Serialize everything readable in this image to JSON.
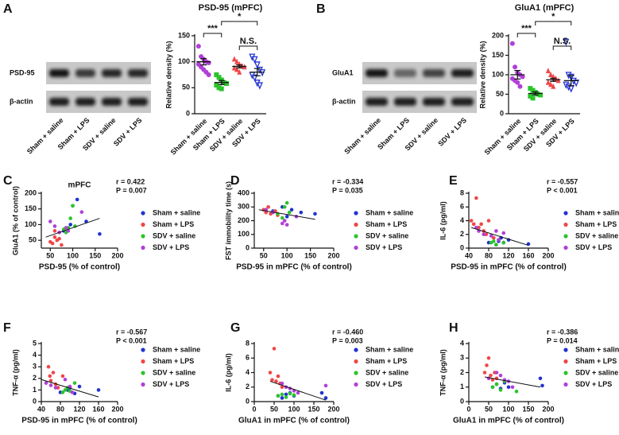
{
  "panels": [
    "A",
    "B",
    "C",
    "D",
    "E",
    "F",
    "G",
    "H"
  ],
  "blots": [
    {
      "label": "PSD-95",
      "control": "β-actin",
      "lanes": [
        "Sham + saline",
        "Sham + LPS",
        "SDV + saline",
        "SDV + LPS"
      ]
    },
    {
      "label": "GluA1",
      "control": "β-actin",
      "lanes": [
        "Sham + saline",
        "Sham + LPS",
        "SDV + saline",
        "SDV + LPS"
      ]
    }
  ],
  "chart_data": [
    {
      "type": "dot",
      "title": "PSD-95 (mPFC)",
      "y_label": "Relative density (%)",
      "categories": [
        "Sham + saline",
        "Sham + LPS",
        "SDV + saline",
        "SDV + LPS"
      ],
      "colors": [
        "#b13fd8",
        "#2bc42b",
        "#f04646",
        "#2233d0"
      ],
      "markers": [
        "circle",
        "square",
        "triangle",
        "triangle-down"
      ],
      "values": [
        [
          130,
          110,
          105,
          100,
          98,
          95,
          90,
          85,
          80,
          75
        ],
        [
          75,
          70,
          65,
          60,
          58,
          55,
          50,
          48
        ],
        [
          105,
          100,
          95,
          92,
          90,
          88,
          85,
          80
        ],
        [
          110,
          105,
          95,
          85,
          80,
          75,
          70,
          60,
          55
        ]
      ],
      "means": [
        100,
        60,
        91,
        80
      ],
      "sems": [
        6,
        4,
        3,
        7
      ],
      "annotations": [
        "***",
        "*",
        "N.S."
      ],
      "ylim": [
        0,
        150
      ],
      "yticks": [
        0,
        50,
        100,
        150
      ]
    },
    {
      "type": "dot",
      "title": "GluA1 (mPFC)",
      "y_label": "Relative density (%)",
      "categories": [
        "Sham + saline",
        "Sham + LPS",
        "SDV + saline",
        "SDV + LPS"
      ],
      "colors": [
        "#b13fd8",
        "#2bc42b",
        "#f04646",
        "#2233d0"
      ],
      "markers": [
        "circle",
        "square",
        "triangle",
        "triangle-down"
      ],
      "values": [
        [
          180,
          120,
          105,
          100,
          95,
          90,
          85,
          80,
          70
        ],
        [
          65,
          60,
          55,
          50,
          48,
          45,
          40
        ],
        [
          110,
          100,
          95,
          90,
          85,
          80,
          75,
          70
        ],
        [
          185,
          100,
          95,
          85,
          80,
          75,
          70,
          65
        ]
      ],
      "means": [
        100,
        52,
        87,
        85
      ],
      "sems": [
        11,
        4,
        4,
        13
      ],
      "annotations": [
        "***",
        "*",
        "N.S."
      ],
      "ylim": [
        0,
        200
      ],
      "yticks": [
        0,
        50,
        100,
        150,
        200
      ]
    },
    {
      "type": "scatter",
      "title": "mPFC",
      "x_label": "PSD-95 (% of control)",
      "y_label": "GluA1 (% of control)",
      "annotation": [
        "r = 0.422",
        "P = 0.007"
      ],
      "series": [
        {
          "name": "Sham + saline",
          "color": "#2233d0",
          "x": [
            95,
            110,
            160,
            130,
            80,
            100
          ],
          "values": [
            100,
            180,
            70,
            110,
            80,
            160
          ]
        },
        {
          "name": "Sham + LPS",
          "color": "#f04646",
          "x": [
            50,
            55,
            60,
            65,
            70,
            75,
            60
          ],
          "values": [
            45,
            40,
            60,
            50,
            55,
            35,
            80
          ]
        },
        {
          "name": "SDV + saline",
          "color": "#2bc42b",
          "x": [
            80,
            90,
            95,
            100,
            85,
            105
          ],
          "values": [
            85,
            90,
            120,
            160,
            75,
            95
          ]
        },
        {
          "name": "SDV + LPS",
          "color": "#b13fd8",
          "x": [
            50,
            60,
            70,
            85,
            120,
            90
          ],
          "values": [
            110,
            95,
            75,
            90,
            140,
            80
          ]
        }
      ],
      "fit": {
        "x": [
          40,
          160
        ],
        "y": [
          60,
          120
        ]
      },
      "xlim": [
        30,
        200
      ],
      "xticks": [
        50,
        100,
        150,
        200
      ],
      "ylim": [
        25,
        200
      ],
      "yticks": [
        50,
        100,
        150,
        200
      ]
    },
    {
      "type": "scatter",
      "x_label": "PSD-95 in mPFC (% of control)",
      "y_label": "FST immobility time (s)",
      "annotation": [
        "r = -0.334",
        "P = 0.035"
      ],
      "series": [
        {
          "name": "Sham + saline",
          "color": "#2233d0",
          "x": [
            70,
            90,
            100,
            110,
            160,
            130
          ],
          "values": [
            270,
            300,
            230,
            280,
            250,
            260
          ]
        },
        {
          "name": "Sham + LPS",
          "color": "#f04646",
          "x": [
            50,
            55,
            60,
            65,
            75,
            80
          ],
          "values": [
            280,
            260,
            300,
            250,
            270,
            240
          ]
        },
        {
          "name": "SDV + saline",
          "color": "#2bc42b",
          "x": [
            80,
            90,
            95,
            100,
            105
          ],
          "values": [
            250,
            220,
            300,
            330,
            260
          ]
        },
        {
          "name": "SDV + LPS",
          "color": "#b13fd8",
          "x": [
            55,
            70,
            90,
            95,
            100,
            120
          ],
          "values": [
            280,
            260,
            180,
            200,
            170,
            230
          ]
        }
      ],
      "fit": {
        "x": [
          40,
          160
        ],
        "y": [
          280,
          210
        ]
      },
      "xlim": [
        30,
        200
      ],
      "xticks": [
        50,
        100,
        150,
        200
      ],
      "ylim": [
        0,
        400
      ],
      "yticks": [
        0,
        100,
        200,
        300,
        400
      ]
    },
    {
      "type": "scatter",
      "x_label": "PSD-95 in mPFC (% of control)",
      "y_label": "IL-6 (pg/ml)",
      "annotation": [
        "r = -0.557",
        "P < 0.001"
      ],
      "series": [
        {
          "name": "Sham + saline",
          "color": "#2233d0",
          "x": [
            80,
            95,
            100,
            105,
            110,
            120,
            160
          ],
          "values": [
            0.8,
            0.5,
            1.0,
            1.5,
            0.8,
            1.2,
            0.6
          ]
        },
        {
          "name": "Sham + LPS",
          "color": "#f04646",
          "x": [
            45,
            50,
            55,
            60,
            65,
            70,
            75,
            80,
            90
          ],
          "values": [
            4.0,
            3.5,
            7.3,
            3.0,
            3.5,
            2.5,
            2.0,
            4.0,
            1.5
          ]
        },
        {
          "name": "SDV + saline",
          "color": "#2bc42b",
          "x": [
            85,
            90,
            95,
            100,
            110
          ],
          "values": [
            0.8,
            1.0,
            0.5,
            1.2,
            0.8
          ]
        },
        {
          "name": "SDV + LPS",
          "color": "#b13fd8",
          "x": [
            55,
            60,
            70,
            85,
            95,
            100,
            110
          ],
          "values": [
            3.0,
            2.5,
            2.0,
            1.8,
            2.5,
            1.2,
            2.2
          ]
        }
      ],
      "fit": {
        "x": [
          45,
          160
        ],
        "y": [
          3.0,
          0.4
        ]
      },
      "xlim": [
        40,
        200
      ],
      "xticks": [
        40,
        80,
        120,
        160,
        200
      ],
      "ylim": [
        0,
        8
      ],
      "yticks": [
        0,
        2,
        4,
        6,
        8
      ]
    },
    {
      "type": "scatter",
      "x_label": "PSD-95 in mPFC (% of control)",
      "y_label": "TNF-α (pg/ml)",
      "annotation": [
        "r = -0.567",
        "P < 0.001"
      ],
      "series": [
        {
          "name": "Sham + saline",
          "color": "#2233d0",
          "x": [
            80,
            95,
            100,
            110,
            120,
            160
          ],
          "values": [
            0.8,
            1.0,
            1.2,
            0.7,
            1.3,
            1.0
          ]
        },
        {
          "name": "Sham + LPS",
          "color": "#f04646",
          "x": [
            55,
            58,
            60,
            65,
            70,
            75,
            85
          ],
          "values": [
            3.0,
            2.2,
            1.8,
            2.5,
            1.5,
            1.2,
            2.2
          ]
        },
        {
          "name": "SDV + saline",
          "color": "#2bc42b",
          "x": [
            85,
            90,
            95,
            100,
            110
          ],
          "values": [
            0.8,
            1.0,
            1.2,
            0.9,
            1.6
          ]
        },
        {
          "name": "SDV + LPS",
          "color": "#b13fd8",
          "x": [
            50,
            60,
            70,
            90,
            100,
            105
          ],
          "values": [
            1.6,
            1.4,
            1.2,
            1.9,
            1.3,
            0.8
          ]
        }
      ],
      "fit": {
        "x": [
          40,
          160
        ],
        "y": [
          1.9,
          0.4
        ]
      },
      "xlim": [
        40,
        200
      ],
      "xticks": [
        40,
        80,
        120,
        160,
        200
      ],
      "ylim": [
        0,
        5
      ],
      "yticks": [
        0,
        1,
        2,
        3,
        4,
        5
      ]
    },
    {
      "type": "scatter",
      "x_label": "GluA1 in mPFC (% of control)",
      "y_label": "IL-6 (pg/ml)",
      "annotation": [
        "r = -0.460",
        "P = 0.003"
      ],
      "series": [
        {
          "name": "Sham + saline",
          "color": "#2233d0",
          "x": [
            60,
            70,
            80,
            90,
            100,
            170,
            180
          ],
          "values": [
            0.8,
            0.5,
            1.0,
            1.2,
            0.8,
            1.2,
            0.5
          ]
        },
        {
          "name": "Sham + LPS",
          "color": "#f04646",
          "x": [
            40,
            45,
            50,
            55,
            60,
            65,
            70
          ],
          "values": [
            4.0,
            3.0,
            7.3,
            2.8,
            3.5,
            2.5,
            2.0
          ]
        },
        {
          "name": "SDV + saline",
          "color": "#2bc42b",
          "x": [
            60,
            70,
            80,
            90,
            100
          ],
          "values": [
            0.8,
            1.0,
            0.6,
            1.1,
            0.9
          ]
        },
        {
          "name": "SDV + LPS",
          "color": "#b13fd8",
          "x": [
            70,
            80,
            90,
            100,
            110,
            180
          ],
          "values": [
            2.5,
            2.0,
            1.8,
            1.5,
            1.2,
            2.2
          ]
        }
      ],
      "fit": {
        "x": [
          40,
          180
        ],
        "y": [
          2.8,
          0.2
        ]
      },
      "xlim": [
        0,
        200
      ],
      "xticks": [
        0,
        50,
        100,
        150,
        200
      ],
      "ylim": [
        0,
        8
      ],
      "yticks": [
        0,
        2,
        4,
        6,
        8
      ]
    },
    {
      "type": "scatter",
      "x_label": "GluA1 in mPFC (% of control)",
      "y_label": "TNF-α (pg/ml)",
      "annotation": [
        "r = -0.386",
        "P = 0.014"
      ],
      "series": [
        {
          "name": "Sham + saline",
          "color": "#2233d0",
          "x": [
            60,
            70,
            80,
            90,
            100,
            180,
            185
          ],
          "values": [
            1.0,
            1.2,
            0.9,
            1.3,
            1.0,
            1.6,
            1.1
          ]
        },
        {
          "name": "Sham + LPS",
          "color": "#f04646",
          "x": [
            40,
            45,
            50,
            55,
            60,
            65,
            70
          ],
          "values": [
            2.0,
            2.5,
            3.0,
            1.8,
            1.5,
            2.0,
            1.6
          ]
        },
        {
          "name": "SDV + saline",
          "color": "#2bc42b",
          "x": [
            60,
            70,
            80,
            90,
            120
          ],
          "values": [
            1.0,
            1.2,
            0.8,
            1.4,
            0.7
          ]
        },
        {
          "name": "SDV + LPS",
          "color": "#b13fd8",
          "x": [
            50,
            70,
            80,
            90,
            100,
            110
          ],
          "values": [
            1.6,
            2.0,
            1.8,
            1.5,
            1.4,
            1.0
          ]
        }
      ],
      "fit": {
        "x": [
          40,
          180
        ],
        "y": [
          1.7,
          1.0
        ]
      },
      "xlim": [
        0,
        200
      ],
      "xticks": [
        0,
        50,
        100,
        150,
        200
      ],
      "ylim": [
        0,
        4
      ],
      "yticks": [
        0,
        1,
        2,
        3,
        4
      ]
    }
  ]
}
